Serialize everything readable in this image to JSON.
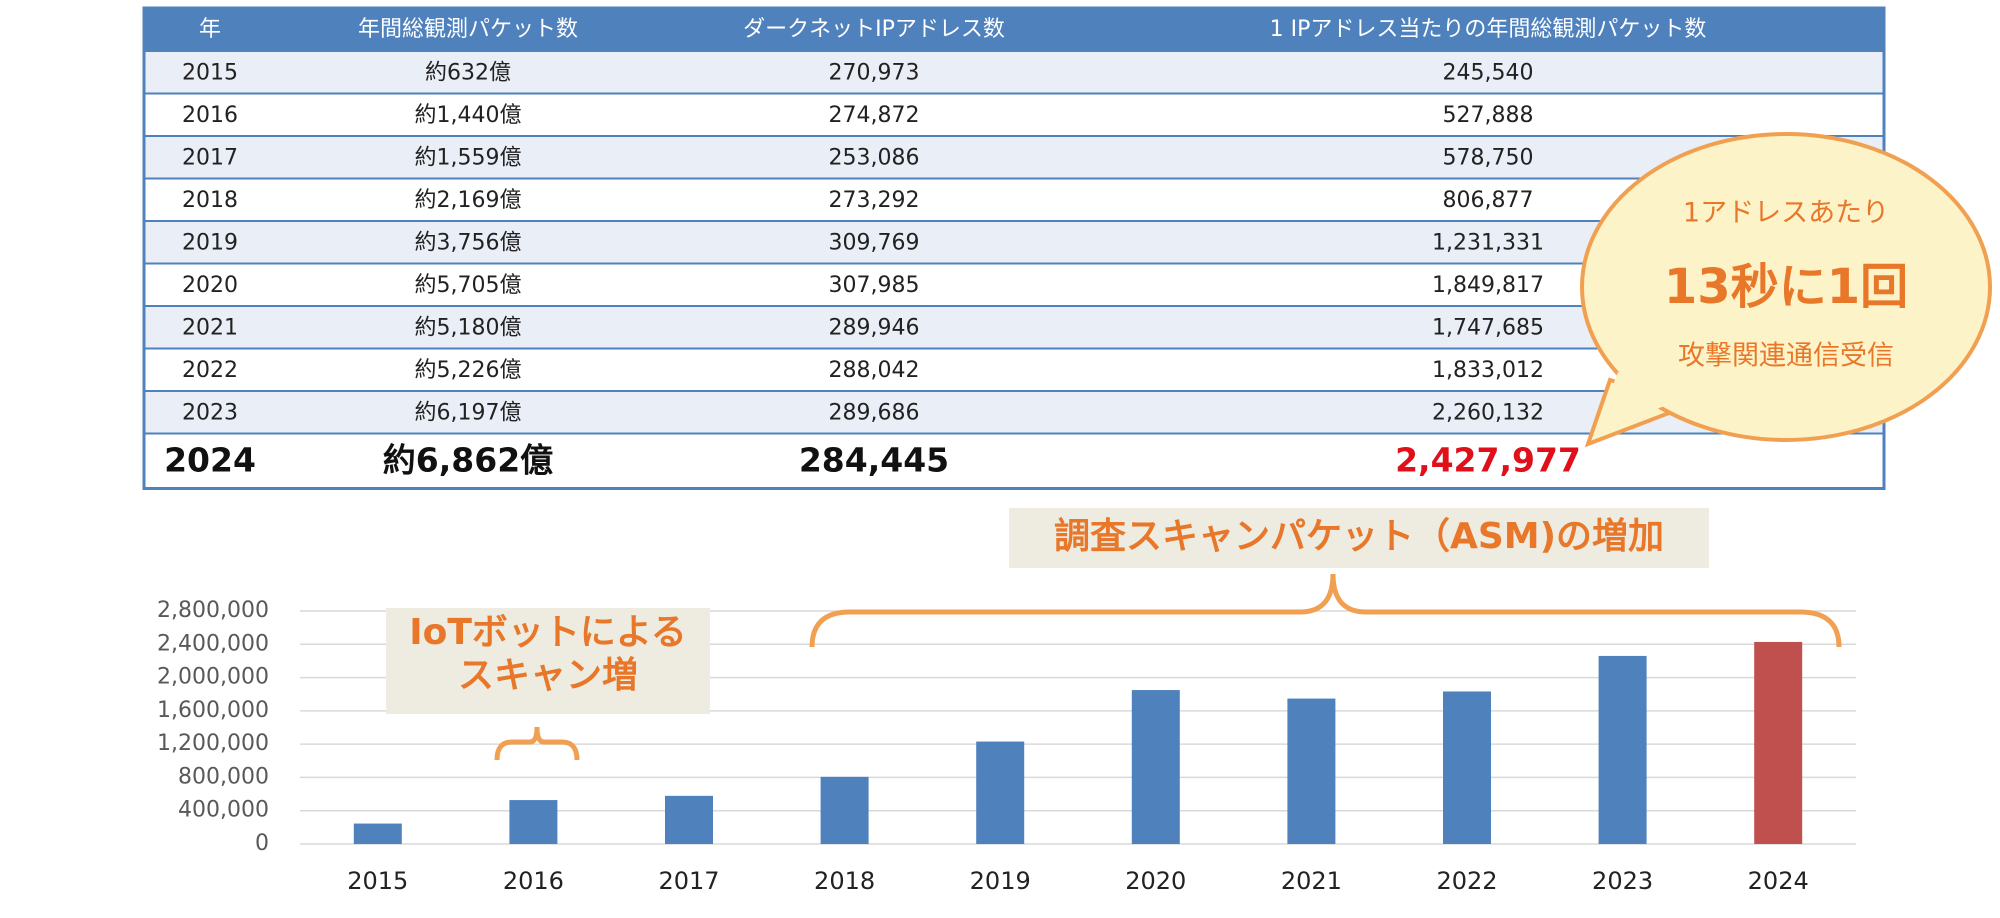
{
  "table": {
    "header": [
      "年",
      "年間総観測パケット数",
      "ダークネットIPアドレス数",
      "1 IPアドレス当たりの年間総観測パケット数"
    ],
    "rows": [
      [
        "2015",
        "約632億",
        "270,973",
        "245,540"
      ],
      [
        "2016",
        "約1,440億",
        "274,872",
        "527,888"
      ],
      [
        "2017",
        "約1,559億",
        "253,086",
        "578,750"
      ],
      [
        "2018",
        "約2,169億",
        "273,292",
        "806,877"
      ],
      [
        "2019",
        "約3,756億",
        "309,769",
        "1,231,331"
      ],
      [
        "2020",
        "約5,705億",
        "307,985",
        "1,849,817"
      ],
      [
        "2021",
        "約5,180億",
        "289,946",
        "1,747,685"
      ],
      [
        "2022",
        "約5,226億",
        "288,042",
        "1,833,012"
      ],
      [
        "2023",
        "約6,197億",
        "289,686",
        "2,260,132"
      ],
      [
        "2024",
        "約6,862億",
        "284,445",
        "2,427,977"
      ]
    ]
  },
  "callout": {
    "lines": [
      "1アドレスあたり",
      "13秒に1回",
      "攻撃関連通信受信"
    ]
  },
  "chart_data": {
    "type": "bar",
    "categories": [
      "2015",
      "2016",
      "2017",
      "2018",
      "2019",
      "2020",
      "2021",
      "2022",
      "2023",
      "2024"
    ],
    "values": [
      245540,
      527888,
      578750,
      806877,
      1231331,
      1849817,
      1747685,
      1833012,
      2260132,
      2427977
    ],
    "colors": [
      "#4f81bd",
      "#4f81bd",
      "#4f81bd",
      "#4f81bd",
      "#4f81bd",
      "#4f81bd",
      "#4f81bd",
      "#4f81bd",
      "#4f81bd",
      "#c0504d"
    ],
    "ylim": [
      0,
      2800000
    ],
    "yticks": [
      0,
      {
        "value": 400000,
        "label": "400,000"
      },
      {
        "value": 800000,
        "label": "800,000"
      },
      {
        "value": 1200000,
        "label": "1,200,000"
      },
      {
        "value": 1600000,
        "label": "1,600,000"
      },
      {
        "value": 2000000,
        "label": "2,000,000"
      },
      {
        "value": 2400000,
        "label": "2,400,000"
      },
      {
        "value": 2800000,
        "label": "2,800,000"
      }
    ],
    "grid": true,
    "annotations": {
      "iot": [
        "IoTボットによる",
        "スキャン増"
      ],
      "asm": "調査スキャンパケット（ASM)の増加"
    }
  }
}
